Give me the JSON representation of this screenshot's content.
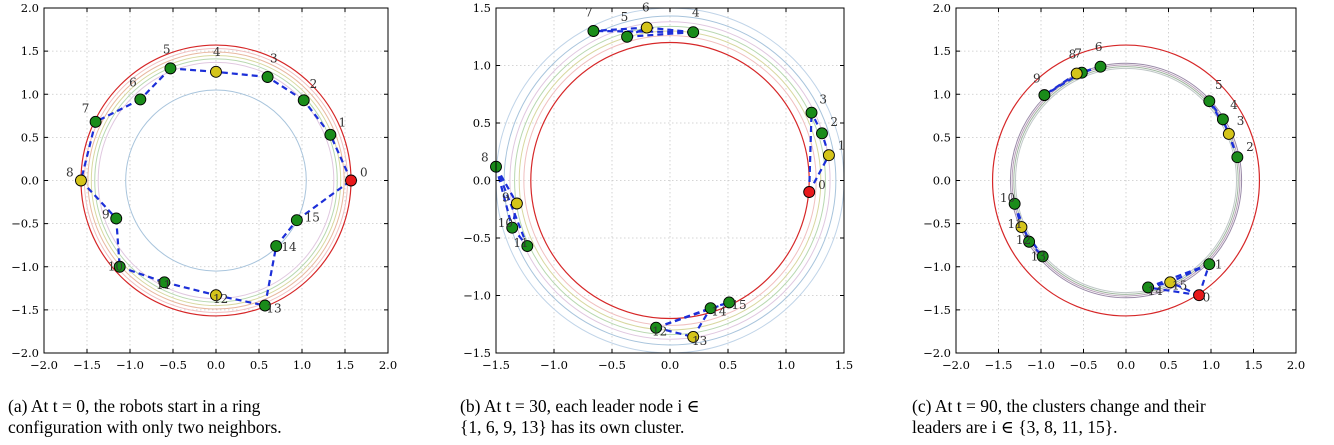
{
  "chart_data": [
    {
      "type": "scatter",
      "title": "",
      "xlim": [
        -2.0,
        2.0
      ],
      "ylim": [
        -2.0,
        2.0
      ],
      "xticks": [
        "−2.0",
        "−1.5",
        "−1.0",
        "−0.5",
        "0.0",
        "0.5",
        "1.0",
        "1.5",
        "2.0"
      ],
      "yticks": [
        "−2.0",
        "−1.5",
        "−1.0",
        "−0.5",
        "0.0",
        "0.5",
        "1.0",
        "1.5",
        "2.0"
      ],
      "grid": true,
      "reference_circles": [
        {
          "r": 1.57,
          "color": "#d62728"
        },
        {
          "r": 1.53,
          "color": "#f0c0c0"
        },
        {
          "r": 1.49,
          "color": "#e8b8a0"
        },
        {
          "r": 1.45,
          "color": "#d8d8a0"
        },
        {
          "r": 1.41,
          "color": "#b8d8b0"
        },
        {
          "r": 1.37,
          "color": "#e0c8e0"
        },
        {
          "r": 1.05,
          "color": "#a8c4dc"
        }
      ],
      "edges": [
        [
          0,
          1
        ],
        [
          1,
          2
        ],
        [
          2,
          3
        ],
        [
          3,
          4
        ],
        [
          4,
          5
        ],
        [
          5,
          6
        ],
        [
          6,
          7
        ],
        [
          7,
          8
        ],
        [
          8,
          9
        ],
        [
          9,
          10
        ],
        [
          10,
          11
        ],
        [
          11,
          12
        ],
        [
          12,
          13
        ],
        [
          13,
          14
        ],
        [
          14,
          15
        ],
        [
          15,
          0
        ]
      ],
      "nodes": [
        {
          "label": "0",
          "x": 1.57,
          "y": 0.0,
          "role": "red"
        },
        {
          "label": "1",
          "x": 1.33,
          "y": 0.53,
          "role": "member"
        },
        {
          "label": "2",
          "x": 1.02,
          "y": 0.93,
          "role": "member"
        },
        {
          "label": "3",
          "x": 0.6,
          "y": 1.2,
          "role": "member"
        },
        {
          "label": "4",
          "x": 0.0,
          "y": 1.26,
          "role": "leader"
        },
        {
          "label": "5",
          "x": -0.53,
          "y": 1.3,
          "role": "member"
        },
        {
          "label": "6",
          "x": -0.88,
          "y": 0.94,
          "role": "member"
        },
        {
          "label": "7",
          "x": -1.4,
          "y": 0.68,
          "role": "member"
        },
        {
          "label": "8",
          "x": -1.57,
          "y": 0.0,
          "role": "leader"
        },
        {
          "label": "9",
          "x": -1.16,
          "y": -0.44,
          "role": "member"
        },
        {
          "label": "10",
          "x": -1.12,
          "y": -1.0,
          "role": "member"
        },
        {
          "label": "11",
          "x": -0.6,
          "y": -1.18,
          "role": "member"
        },
        {
          "label": "12",
          "x": 0.0,
          "y": -1.33,
          "role": "leader"
        },
        {
          "label": "13",
          "x": 0.57,
          "y": -1.45,
          "role": "member"
        },
        {
          "label": "14",
          "x": 0.7,
          "y": -0.76,
          "role": "member"
        },
        {
          "label": "15",
          "x": 0.94,
          "y": -0.46,
          "role": "member"
        }
      ],
      "caption": [
        "(a) At t = 0, the robots start in a ring",
        "configuration with only two neighbors."
      ]
    },
    {
      "type": "scatter",
      "title": "",
      "xlim": [
        -1.5,
        1.5
      ],
      "ylim": [
        -1.5,
        1.5
      ],
      "xticks": [
        "−1.5",
        "−1.0",
        "−0.5",
        "0.0",
        "0.5",
        "1.0",
        "1.5"
      ],
      "yticks": [
        "−1.5",
        "−1.0",
        "−0.5",
        "0.0",
        "0.5",
        "1.0",
        "1.5"
      ],
      "grid": true,
      "reference_circles": [
        {
          "r": 1.2,
          "color": "#d62728"
        },
        {
          "r": 1.26,
          "color": "#f0c0c0"
        },
        {
          "r": 1.3,
          "color": "#d8d8a0"
        },
        {
          "r": 1.34,
          "color": "#b8d8b0"
        },
        {
          "r": 1.38,
          "color": "#e0c8e0"
        },
        {
          "r": 1.43,
          "color": "#a8c4dc"
        },
        {
          "r": 1.5,
          "color": "#c0d4e8"
        }
      ],
      "edges": [
        [
          0,
          1
        ],
        [
          1,
          2
        ],
        [
          2,
          3
        ],
        [
          0,
          3
        ],
        [
          4,
          5
        ],
        [
          5,
          6
        ],
        [
          6,
          7
        ],
        [
          4,
          7
        ],
        [
          4,
          6
        ],
        [
          8,
          9
        ],
        [
          9,
          10
        ],
        [
          10,
          11
        ],
        [
          8,
          11
        ],
        [
          8,
          10
        ],
        [
          12,
          13
        ],
        [
          13,
          14
        ],
        [
          14,
          15
        ],
        [
          12,
          15
        ],
        [
          12,
          14
        ]
      ],
      "nodes": [
        {
          "label": "0",
          "x": 1.2,
          "y": -0.1,
          "role": "red"
        },
        {
          "label": "1",
          "x": 1.37,
          "y": 0.22,
          "role": "leader"
        },
        {
          "label": "2",
          "x": 1.31,
          "y": 0.41,
          "role": "member"
        },
        {
          "label": "3",
          "x": 1.22,
          "y": 0.59,
          "role": "member"
        },
        {
          "label": "4",
          "x": 0.2,
          "y": 1.29,
          "role": "member"
        },
        {
          "label": "5",
          "x": -0.37,
          "y": 1.25,
          "role": "member"
        },
        {
          "label": "6",
          "x": -0.2,
          "y": 1.33,
          "role": "leader"
        },
        {
          "label": "7",
          "x": -0.66,
          "y": 1.3,
          "role": "member"
        },
        {
          "label": "8",
          "x": -1.5,
          "y": 0.12,
          "role": "member"
        },
        {
          "label": "9",
          "x": -1.32,
          "y": -0.2,
          "role": "leader"
        },
        {
          "label": "10",
          "x": -1.36,
          "y": -0.41,
          "role": "member"
        },
        {
          "label": "11",
          "x": -1.23,
          "y": -0.57,
          "role": "member"
        },
        {
          "label": "12",
          "x": -0.12,
          "y": -1.28,
          "role": "member"
        },
        {
          "label": "13",
          "x": 0.2,
          "y": -1.36,
          "role": "leader"
        },
        {
          "label": "14",
          "x": 0.35,
          "y": -1.11,
          "role": "member"
        },
        {
          "label": "15",
          "x": 0.51,
          "y": -1.06,
          "role": "member"
        }
      ],
      "caption": [
        "(b) At t = 30, each leader node i ∈",
        "{1, 6, 9, 13} has its own cluster."
      ]
    },
    {
      "type": "scatter",
      "title": "",
      "xlim": [
        -2.0,
        2.0
      ],
      "ylim": [
        -2.0,
        2.0
      ],
      "xticks": [
        "−2.0",
        "−1.5",
        "−1.0",
        "−0.5",
        "0.0",
        "0.5",
        "1.0",
        "1.5",
        "2.0"
      ],
      "yticks": [
        "−2.0",
        "−1.5",
        "−1.0",
        "−0.5",
        "0.0",
        "0.5",
        "1.0",
        "1.5",
        "2.0"
      ],
      "grid": true,
      "reference_circles": [
        {
          "r": 1.57,
          "color": "#d62728"
        },
        {
          "r": 1.36,
          "color": "#9a8aa8"
        },
        {
          "r": 1.34,
          "color": "#b8a0b8"
        },
        {
          "r": 1.32,
          "color": "#a0b8a0"
        },
        {
          "r": 1.3,
          "color": "#c0c8c8"
        }
      ],
      "edges": [
        [
          0,
          1
        ],
        [
          0,
          14
        ],
        [
          1,
          14
        ],
        [
          1,
          15
        ],
        [
          14,
          15
        ],
        [
          0,
          15
        ],
        [
          2,
          3
        ],
        [
          3,
          4
        ],
        [
          4,
          5
        ],
        [
          2,
          4
        ],
        [
          3,
          5
        ],
        [
          6,
          7
        ],
        [
          7,
          8
        ],
        [
          8,
          9
        ],
        [
          6,
          8
        ],
        [
          7,
          9
        ],
        [
          10,
          11
        ],
        [
          11,
          12
        ],
        [
          12,
          13
        ],
        [
          10,
          12
        ],
        [
          11,
          13
        ]
      ],
      "nodes": [
        {
          "label": "0",
          "x": 0.86,
          "y": -1.33,
          "role": "red"
        },
        {
          "label": "1",
          "x": 0.98,
          "y": -0.97,
          "role": "member"
        },
        {
          "label": "2",
          "x": 1.31,
          "y": 0.27,
          "role": "member"
        },
        {
          "label": "3",
          "x": 1.21,
          "y": 0.54,
          "role": "leader"
        },
        {
          "label": "4",
          "x": 1.14,
          "y": 0.71,
          "role": "member"
        },
        {
          "label": "5",
          "x": 0.98,
          "y": 0.92,
          "role": "member"
        },
        {
          "label": "6",
          "x": -0.3,
          "y": 1.32,
          "role": "member"
        },
        {
          "label": "7",
          "x": -0.52,
          "y": 1.25,
          "role": "member"
        },
        {
          "label": "8",
          "x": -0.58,
          "y": 1.24,
          "role": "leader"
        },
        {
          "label": "9",
          "x": -0.96,
          "y": 0.99,
          "role": "member"
        },
        {
          "label": "10",
          "x": -1.31,
          "y": -0.27,
          "role": "member"
        },
        {
          "label": "11",
          "x": -1.23,
          "y": -0.54,
          "role": "leader"
        },
        {
          "label": "12",
          "x": -1.14,
          "y": -0.71,
          "role": "member"
        },
        {
          "label": "13",
          "x": -0.98,
          "y": -0.88,
          "role": "member"
        },
        {
          "label": "14",
          "x": 0.26,
          "y": -1.24,
          "role": "member"
        },
        {
          "label": "15",
          "x": 0.52,
          "y": -1.18,
          "role": "leader"
        }
      ],
      "caption": [
        "(c) At t = 90, the clusters change and their",
        "leaders are i ∈ {3, 8, 11, 15}."
      ]
    }
  ],
  "colors": {
    "red_node": "#e8191b",
    "leader_node": "#d4c41a",
    "member_node": "#1a8c1a",
    "edge": "#1c2fd8",
    "grid": "#c8c8c8"
  }
}
